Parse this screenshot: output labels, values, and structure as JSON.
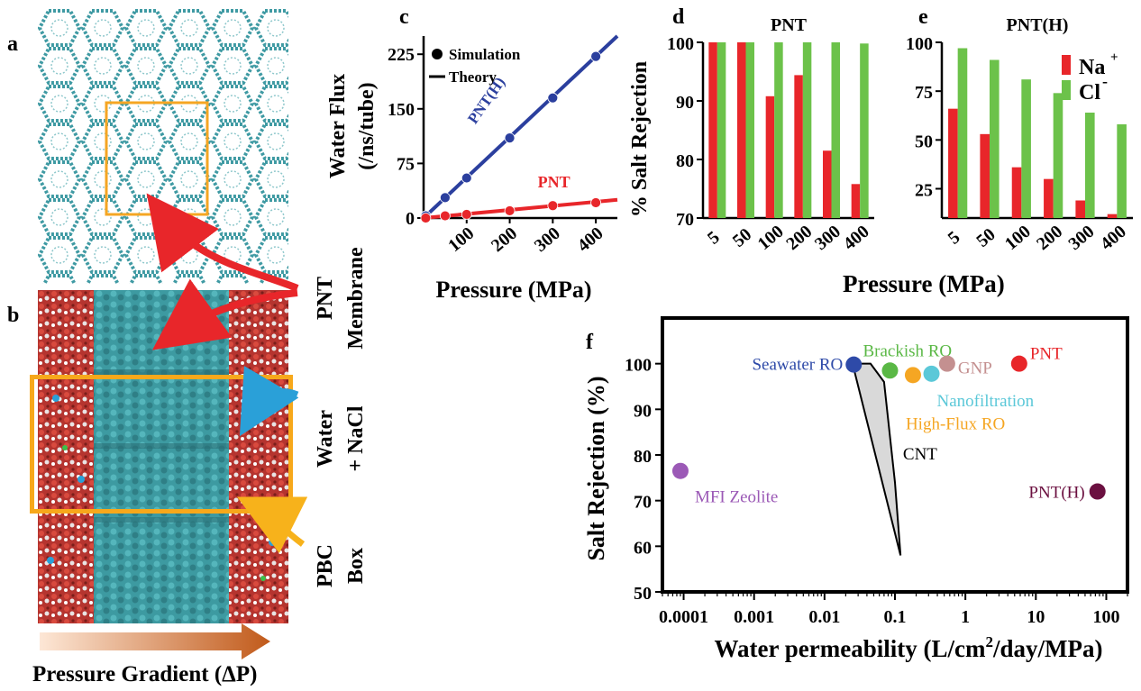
{
  "panel_letters": {
    "a": "a",
    "b": "b",
    "c": "c",
    "d": "d",
    "e": "e",
    "f": "f"
  },
  "side_labels": {
    "pnt": "PNT",
    "membrane": "Membrane",
    "water": "Water",
    "nacl": "+ NaCl",
    "pbc": "PBC",
    "box": "Box"
  },
  "gradient_label": "Pressure Gradient (ΔP)",
  "colors": {
    "red": "#e8262a",
    "green": "#6cc24a",
    "blue": "#2b3f9e",
    "orange_box": "#f7a81b",
    "teal": "#2e8b92"
  },
  "chart_data": [
    {
      "panel": "c",
      "type": "scatter",
      "ylabel_line1": "Water Flux",
      "ylabel_line2": "(/ns/tube)",
      "xlabel": "Pressure (MPa)",
      "xlim": [
        0,
        450
      ],
      "ylim": [
        0,
        250
      ],
      "xticks": [
        "100",
        "200",
        "300",
        "400"
      ],
      "xtick_values": [
        100,
        200,
        300,
        400
      ],
      "yticks": [
        "0",
        "75",
        "150",
        "225"
      ],
      "ytick_values": [
        0,
        75,
        150,
        225
      ],
      "legend": {
        "simulation": "Simulation",
        "theory": "Theory"
      },
      "series": [
        {
          "name": "PNT(H)",
          "color": "#2b3f9e",
          "x": [
            5,
            50,
            100,
            200,
            300,
            400
          ],
          "y": [
            3,
            28,
            55,
            110,
            165,
            222
          ],
          "fit": {
            "x": [
              0,
              450
            ],
            "y": [
              0,
              250
            ]
          }
        },
        {
          "name": "PNT",
          "color": "#e8262a",
          "x": [
            5,
            50,
            100,
            200,
            300,
            400
          ],
          "y": [
            0,
            3,
            5,
            10,
            17,
            21
          ],
          "fit": {
            "x": [
              0,
              450
            ],
            "y": [
              0,
              25
            ]
          }
        }
      ]
    },
    {
      "panel": "d",
      "type": "bar",
      "title": "PNT",
      "ylabel": "% Salt Rejection",
      "ylim": [
        70,
        100
      ],
      "yticks": [
        "70",
        "80",
        "90",
        "100"
      ],
      "ytick_values": [
        70,
        80,
        90,
        100
      ],
      "categories": [
        "5",
        "50",
        "100",
        "200",
        "300",
        "400"
      ],
      "series": [
        {
          "name": "Na+",
          "color": "#e8262a",
          "values": [
            100,
            100,
            90.8,
            94.4,
            81.5,
            75.8
          ]
        },
        {
          "name": "Cl-",
          "color": "#6cc24a",
          "values": [
            100,
            100,
            100,
            100,
            100,
            99.8
          ]
        }
      ]
    },
    {
      "panel": "e",
      "type": "bar",
      "title": "PNT(H)",
      "ylim": [
        10,
        100
      ],
      "yticks": [
        "25",
        "50",
        "75",
        "100"
      ],
      "ytick_values": [
        25,
        50,
        75,
        100
      ],
      "categories": [
        "5",
        "50",
        "100",
        "200",
        "300",
        "400"
      ],
      "legend": {
        "na": "Na",
        "na_sup": "+",
        "cl": "Cl",
        "cl_sup": "-"
      },
      "shared_xlabel": "Pressure (MPa)",
      "series": [
        {
          "name": "Na+",
          "color": "#e8262a",
          "values": [
            66,
            53,
            36,
            30,
            19,
            12
          ]
        },
        {
          "name": "Cl-",
          "color": "#6cc24a",
          "values": [
            97,
            91,
            81,
            74,
            64,
            58
          ]
        }
      ]
    },
    {
      "panel": "f",
      "type": "scatter",
      "log_x": true,
      "ylabel": "Salt Rejection (%)",
      "xlabel_pre": "Water permeability (L/cm",
      "xlabel_sup": "2",
      "xlabel_post": "/day/MPa)",
      "xlim": [
        5e-05,
        200
      ],
      "ylim": [
        50,
        110
      ],
      "xticks": [
        "0.0001",
        "0.001",
        "0.01",
        "0.1",
        "1",
        "10",
        "100"
      ],
      "xtick_values": [
        0.0001,
        0.001,
        0.01,
        0.1,
        1,
        10,
        100
      ],
      "yticks": [
        "50",
        "60",
        "70",
        "80",
        "90",
        "100"
      ],
      "ytick_values": [
        50,
        60,
        70,
        80,
        90,
        100
      ],
      "points": [
        {
          "label": "Seawater RO",
          "x": 0.026,
          "y": 99.8,
          "color": "#2e4aa8",
          "label_color": "#2e4aa8"
        },
        {
          "label": "Brackish RO",
          "x": 0.085,
          "y": 98.5,
          "color": "#5ab845",
          "label_color": "#5ab845"
        },
        {
          "label": "High-Flux RO",
          "x": 0.18,
          "y": 97.5,
          "color": "#f5a623",
          "label_color": "#f5a623"
        },
        {
          "label": "Nanofiltration",
          "x": 0.33,
          "y": 97.8,
          "color": "#5bc8d8",
          "label_color": "#5bc8d8"
        },
        {
          "label": "GNP",
          "x": 0.55,
          "y": 100,
          "color": "#c49090",
          "label_color": "#c49090"
        },
        {
          "label": "PNT",
          "x": 5.8,
          "y": 100,
          "color": "#e8262a",
          "label_color": "#e8262a"
        },
        {
          "label": "MFI Zeolite",
          "x": 9e-05,
          "y": 76.5,
          "color": "#9b59b6",
          "label_color": "#9b59b6"
        },
        {
          "label": "PNT(H)",
          "x": 75,
          "y": 72,
          "color": "#6b1040",
          "label_color": "#6b1040"
        }
      ],
      "cnt_region": {
        "label": "CNT",
        "x": [
          0.025,
          0.045,
          0.07,
          0.1,
          0.12,
          0.025
        ],
        "y": [
          100,
          100,
          96,
          74,
          58,
          100
        ]
      }
    }
  ]
}
